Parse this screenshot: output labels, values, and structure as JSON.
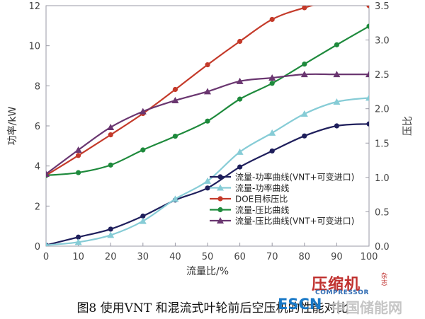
{
  "chart_data": {
    "type": "line",
    "x": [
      0,
      10,
      20,
      30,
      40,
      50,
      60,
      70,
      80,
      90,
      100
    ],
    "xlabel": "流量比/%",
    "ylabel_left": "功率/kW",
    "ylabel_right": "压比",
    "xlim": [
      0,
      100
    ],
    "ylim_left": [
      0,
      12
    ],
    "ylim_right": [
      0,
      3.5
    ],
    "xticks": [
      "0",
      "10",
      "20",
      "30",
      "40",
      "50",
      "60",
      "70",
      "80",
      "90",
      "100"
    ],
    "yticks_left": [
      "0",
      "2",
      "4",
      "6",
      "8",
      "10",
      "12"
    ],
    "yticks_right": [
      "0.0",
      "0.5",
      "1.0",
      "1.5",
      "2.0",
      "2.5",
      "3.0",
      "3.5"
    ],
    "legend_position": "lower-right",
    "grid": false,
    "series": [
      {
        "name": "流量-功率曲线(VNT+可变进口)",
        "axis": "left",
        "color": "#1f1f5c",
        "marker": "circle",
        "values": [
          0.05,
          0.45,
          0.85,
          1.5,
          2.3,
          2.9,
          3.95,
          4.75,
          5.5,
          6.0,
          6.1
        ]
      },
      {
        "name": "流量-功率曲线",
        "axis": "left",
        "color": "#86ccd6",
        "marker": "triangle",
        "values": [
          0.05,
          0.2,
          0.55,
          1.25,
          2.35,
          3.25,
          4.7,
          5.65,
          6.6,
          7.2,
          7.4
        ]
      },
      {
        "name": "DOE目标压比",
        "axis": "right",
        "color": "#c43a2a",
        "marker": "circle",
        "values": [
          1.03,
          1.32,
          1.62,
          1.93,
          2.28,
          2.64,
          2.98,
          3.3,
          3.47,
          3.58,
          3.5
        ]
      },
      {
        "name": "流量-压比曲线",
        "axis": "right",
        "color": "#1e8a3c",
        "marker": "circle",
        "values": [
          1.03,
          1.07,
          1.18,
          1.4,
          1.6,
          1.82,
          2.14,
          2.37,
          2.65,
          2.93,
          3.2
        ]
      },
      {
        "name": "流量-压比曲线(VNT+可变进口)",
        "axis": "right",
        "color": "#6a3670",
        "marker": "triangle",
        "values": [
          1.05,
          1.4,
          1.73,
          1.96,
          2.12,
          2.25,
          2.4,
          2.45,
          2.5,
          2.5,
          2.5
        ]
      }
    ]
  },
  "caption": "图8 使用VNT 和混流式叶轮前后空压机的性能对比",
  "watermark": {
    "brand": "压缩机",
    "brand_side": "杂志",
    "brand_sub": "COMPRESSOR",
    "site_prefix": "ESCN",
    "site_name": "中国储能网"
  }
}
